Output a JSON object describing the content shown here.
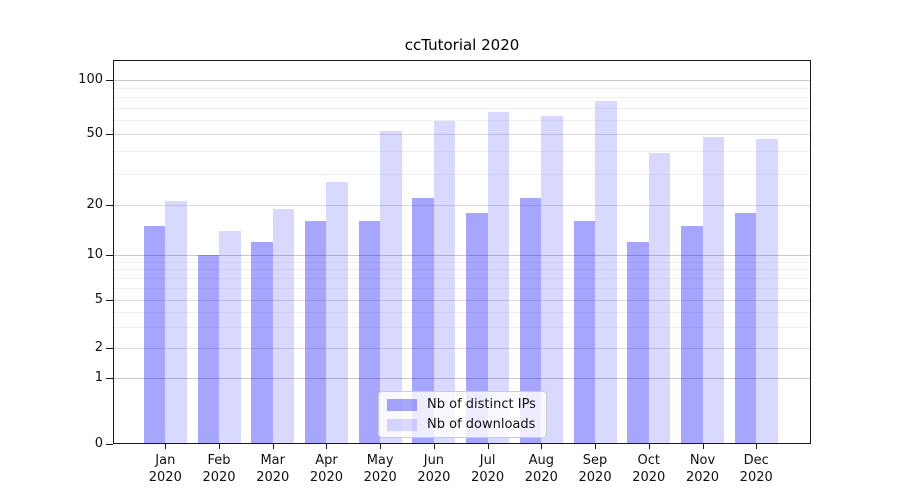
{
  "title": "ccTutorial 2020",
  "year_label": "2020",
  "chart_data": {
    "type": "bar",
    "title": "ccTutorial 2020",
    "categories": [
      "Jan",
      "Feb",
      "Mar",
      "Apr",
      "May",
      "Jun",
      "Jul",
      "Aug",
      "Sep",
      "Oct",
      "Nov",
      "Dec"
    ],
    "category_year": "2020",
    "series": [
      {
        "name": "Nb of distinct IPs",
        "values": [
          15,
          10,
          12,
          16,
          16,
          22,
          18,
          22,
          16,
          12,
          15,
          18
        ]
      },
      {
        "name": "Nb of downloads",
        "values": [
          21,
          14,
          19,
          27,
          52,
          59,
          66,
          63,
          76,
          39,
          48,
          47
        ]
      }
    ],
    "yscale": "log-like (symlog, zero shown)",
    "yticks": [
      0,
      1,
      2,
      5,
      10,
      20,
      50,
      100
    ],
    "minor_gridlines": [
      3,
      4,
      6,
      7,
      8,
      9,
      30,
      40,
      60,
      70,
      80,
      90
    ],
    "xlabel": "",
    "ylabel": "",
    "grid": true,
    "legend_position": "lower center"
  },
  "legend": {
    "items": [
      {
        "label": "Nb of distinct IPs",
        "color": "#0000ff59"
      },
      {
        "label": "Nb of downloads",
        "color": "#0000ff26"
      }
    ]
  },
  "colors": {
    "bar_ips": "#0000ff59",
    "bar_downloads": "#0000ff26",
    "grid_decade": "#c9c9c9",
    "grid_mid": "#dddddd",
    "grid_minor": "#efefef",
    "spine": "#1a1a1a",
    "text": "#111111",
    "legend_bg": "#ffffffcc",
    "legend_border": "#cccccc"
  }
}
